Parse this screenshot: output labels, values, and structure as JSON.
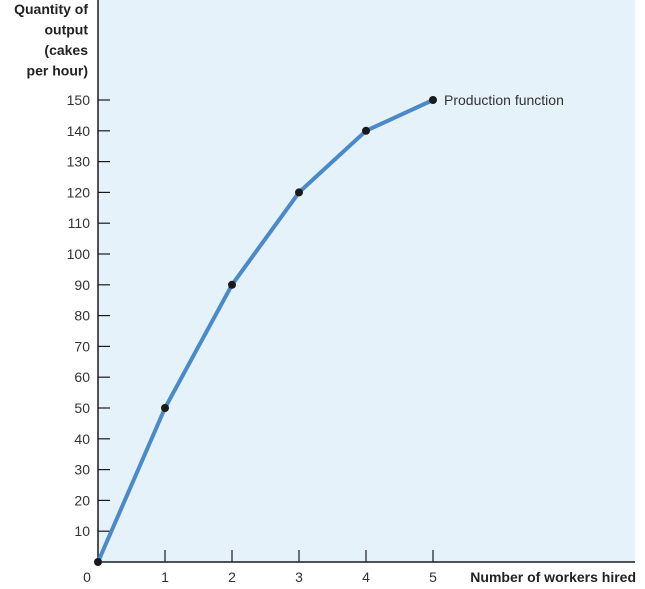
{
  "chart_data": {
    "type": "line",
    "title": "",
    "ylabel": [
      "Quantity of",
      "output",
      "(cakes",
      "per hour)"
    ],
    "xlabel": "Number of workers hired",
    "x": [
      0,
      1,
      2,
      3,
      4,
      5
    ],
    "series": [
      {
        "values": [
          0,
          50,
          90,
          120,
          140,
          150
        ],
        "color": "#4a8ac9"
      }
    ],
    "xlim": [
      0,
      5
    ],
    "ylim": [
      0,
      150
    ],
    "xticks": [
      0,
      1,
      2,
      3,
      4,
      5
    ],
    "yticks": [
      10,
      20,
      30,
      40,
      50,
      60,
      70,
      80,
      90,
      100,
      110,
      120,
      130,
      140,
      150
    ],
    "annotation": {
      "text": "Production function",
      "x": 5,
      "y": 150
    },
    "background_color": "#e6f2fa",
    "point_color": "#1a1a1a",
    "grid": false
  }
}
